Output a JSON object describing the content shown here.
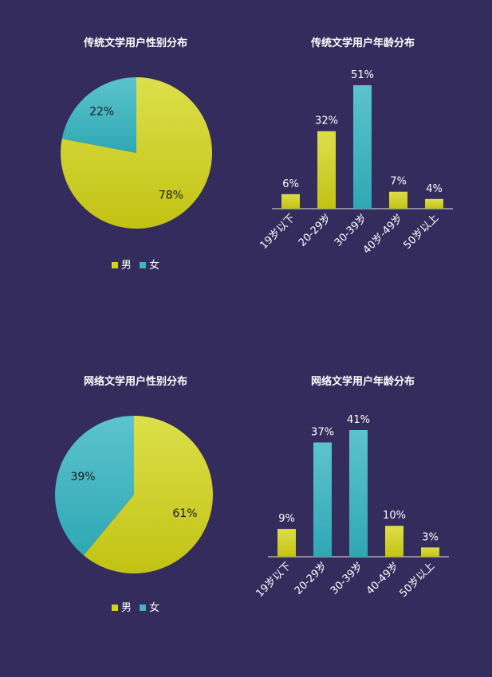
{
  "colors": {
    "background": "#332c5c",
    "yellow": "#d2d51c",
    "teal": "#3eb5bf",
    "axis": "#e8e8f0"
  },
  "chart_data": [
    {
      "type": "pie",
      "title": "传统文学用户性别分布",
      "labels": [
        "男",
        "女"
      ],
      "values": [
        78,
        22
      ],
      "value_labels": [
        "78%",
        "22%"
      ],
      "legend": "bottom"
    },
    {
      "type": "bar",
      "title": "传统文学用户年龄分布",
      "categories": [
        "19岁以下",
        "20-29岁",
        "30-39岁",
        "40岁-49岁",
        "50岁以上"
      ],
      "values": [
        6,
        32,
        51,
        7,
        4
      ],
      "value_labels": [
        "6%",
        "32%",
        "51%",
        "7%",
        "4%"
      ],
      "bar_colors": [
        "yellow",
        "yellow",
        "teal",
        "yellow",
        "yellow"
      ],
      "ylim": [
        0,
        51
      ]
    },
    {
      "type": "pie",
      "title": "网络文学用户性别分布",
      "labels": [
        "男",
        "女"
      ],
      "values": [
        61,
        39
      ],
      "value_labels": [
        "61%",
        "39%"
      ],
      "legend": "bottom"
    },
    {
      "type": "bar",
      "title": "网络文学用户年龄分布",
      "categories": [
        "19岁以下",
        "20-29岁",
        "30-39岁",
        "40-49岁",
        "50岁以上"
      ],
      "values": [
        9,
        37,
        41,
        10,
        3
      ],
      "value_labels": [
        "9%",
        "37%",
        "41%",
        "10%",
        "3%"
      ],
      "bar_colors": [
        "yellow",
        "teal",
        "teal",
        "yellow",
        "yellow"
      ],
      "ylim": [
        0,
        41
      ]
    }
  ]
}
